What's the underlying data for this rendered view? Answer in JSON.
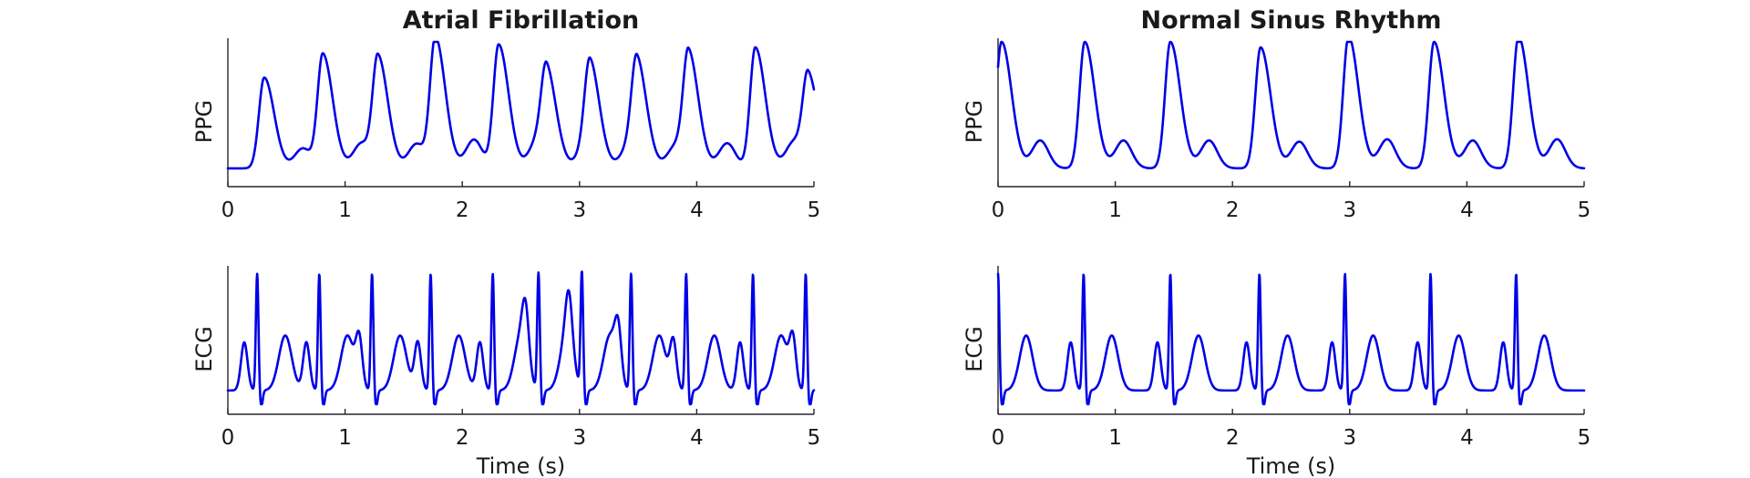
{
  "trace_color": "#0000e6",
  "chart_data": [
    {
      "id": "afib-ppg",
      "type": "line",
      "signal": "ppg",
      "column": 0,
      "row": 0,
      "title": "Atrial Fibrillation",
      "ylabel": "PPG",
      "xlabel": "",
      "xlim": [
        0,
        5
      ],
      "xticks": [
        "0",
        "1",
        "2",
        "3",
        "4",
        "5"
      ],
      "peaks_s": [
        0.31,
        0.81,
        1.28,
        1.77,
        2.31,
        2.72,
        3.09,
        3.49,
        3.93,
        4.5,
        4.95
      ],
      "peak_amp": [
        0.66,
        0.83,
        0.81,
        0.95,
        0.9,
        0.67,
        0.68,
        0.74,
        0.83,
        0.88,
        0.67
      ],
      "series": [
        {
          "name": "",
          "color": "#0000e6"
        }
      ]
    },
    {
      "id": "afib-ecg",
      "type": "line",
      "signal": "ecg",
      "column": 0,
      "row": 1,
      "title": "",
      "ylabel": "ECG",
      "xlabel": "Time (s)",
      "xlim": [
        0,
        5
      ],
      "xticks": [
        "0",
        "1",
        "2",
        "3",
        "4",
        "5"
      ],
      "r_peaks_s": [
        0.25,
        0.78,
        1.23,
        1.73,
        2.26,
        2.65,
        3.02,
        3.44,
        3.91,
        4.48,
        4.93
      ],
      "series": [
        {
          "name": "",
          "color": "#0000e6"
        }
      ]
    },
    {
      "id": "nsr-ppg",
      "type": "line",
      "signal": "ppg",
      "column": 1,
      "row": 0,
      "title": "Normal Sinus Rhythm",
      "ylabel": "PPG",
      "xlabel": "",
      "xlim": [
        0,
        5
      ],
      "xticks": [
        "0",
        "1",
        "2",
        "3",
        "4",
        "5"
      ],
      "peaks_s": [
        0.03,
        0.74,
        1.47,
        2.24,
        2.99,
        3.72,
        4.44
      ],
      "peak_amp": [
        0.92,
        0.92,
        0.92,
        0.88,
        0.96,
        0.92,
        0.96
      ],
      "series": [
        {
          "name": "",
          "color": "#0000e6"
        }
      ]
    },
    {
      "id": "nsr-ecg",
      "type": "line",
      "signal": "ecg",
      "column": 1,
      "row": 1,
      "title": "",
      "ylabel": "ECG",
      "xlabel": "Time (s)",
      "xlim": [
        0,
        5
      ],
      "xticks": [
        "0",
        "1",
        "2",
        "3",
        "4",
        "5"
      ],
      "r_peaks_s": [
        0.0,
        0.73,
        1.47,
        2.23,
        2.96,
        3.69,
        4.42
      ],
      "series": [
        {
          "name": "",
          "color": "#0000e6"
        }
      ]
    }
  ]
}
